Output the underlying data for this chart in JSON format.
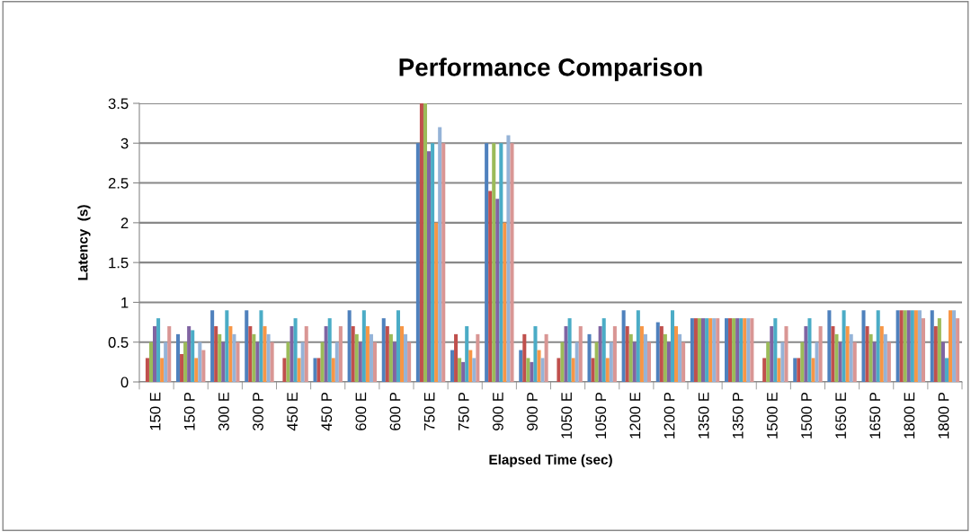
{
  "chart_data": {
    "type": "bar",
    "title": "Performance Comparison",
    "xlabel": "Elapsed Time (sec)",
    "ylabel": "Latency  (s)",
    "categories": [
      "150 E",
      "150 P",
      "300 E",
      "300 P",
      "450 E",
      "450 P",
      "600 E",
      "600 P",
      "750 E",
      "750 P",
      "900 E",
      "900 P",
      "1050 E",
      "1050 P",
      "1200 E",
      "1200 P",
      "1350 E",
      "1350 P",
      "1500 E",
      "1500 P",
      "1650 E",
      "1650 P",
      "1800 E",
      "1800 P"
    ],
    "series": [
      {
        "color": "#4f81bd",
        "values": [
          0,
          0.6,
          0.9,
          0.9,
          0,
          0.3,
          0.9,
          0.8,
          3,
          0.4,
          3,
          0.4,
          0,
          0.6,
          0.9,
          0.75,
          0.8,
          0.8,
          0,
          0.3,
          0.9,
          0.9,
          0.9,
          0.9
        ]
      },
      {
        "color": "#c0504d",
        "values": [
          0.3,
          0.35,
          0.7,
          0.7,
          0.3,
          0.3,
          0.7,
          0.7,
          3.5,
          0.6,
          2.4,
          0.6,
          0.3,
          0.3,
          0.7,
          0.7,
          0.8,
          0.8,
          0.3,
          0.3,
          0.7,
          0.7,
          0.9,
          0.7
        ]
      },
      {
        "color": "#9bbb59",
        "values": [
          0.5,
          0.5,
          0.6,
          0.6,
          0.5,
          0.5,
          0.6,
          0.6,
          3.5,
          0.3,
          3,
          0.3,
          0.5,
          0.5,
          0.6,
          0.6,
          0.8,
          0.8,
          0.5,
          0.5,
          0.6,
          0.6,
          0.9,
          0.8
        ]
      },
      {
        "color": "#8064a2",
        "values": [
          0.7,
          0.7,
          0.5,
          0.5,
          0.7,
          0.7,
          0.5,
          0.5,
          2.9,
          0.25,
          2.3,
          0.25,
          0.7,
          0.7,
          0.5,
          0.5,
          0.8,
          0.8,
          0.7,
          0.7,
          0.5,
          0.5,
          0.9,
          0.5
        ]
      },
      {
        "color": "#4bacc6",
        "values": [
          0.8,
          0.65,
          0.9,
          0.9,
          0.8,
          0.8,
          0.9,
          0.9,
          3,
          0.7,
          3,
          0.7,
          0.8,
          0.8,
          0.9,
          0.9,
          0.8,
          0.8,
          0.8,
          0.8,
          0.9,
          0.9,
          0.9,
          0.3
        ]
      },
      {
        "color": "#f79646",
        "values": [
          0.3,
          0.3,
          0.7,
          0.7,
          0.3,
          0.3,
          0.7,
          0.7,
          2,
          0.4,
          2,
          0.4,
          0.3,
          0.3,
          0.7,
          0.7,
          0.8,
          0.8,
          0.3,
          0.3,
          0.7,
          0.7,
          0.9,
          0.9
        ]
      },
      {
        "color": "#95b3d7",
        "values": [
          0.5,
          0.5,
          0.6,
          0.6,
          0.5,
          0.5,
          0.6,
          0.6,
          3.2,
          0.3,
          3.1,
          0.3,
          0.5,
          0.5,
          0.6,
          0.6,
          0.8,
          0.8,
          0.5,
          0.5,
          0.6,
          0.6,
          0.9,
          0.9
        ]
      },
      {
        "color": "#d99694",
        "values": [
          0.7,
          0.4,
          0.5,
          0.5,
          0.7,
          0.7,
          0.5,
          0.5,
          3,
          0.6,
          3,
          0.6,
          0.7,
          0.7,
          0.5,
          0.5,
          0.8,
          0.8,
          0.7,
          0.7,
          0.5,
          0.5,
          0.8,
          0.8
        ]
      }
    ],
    "ylim": [
      0,
      3.5
    ],
    "yticks": [
      0,
      0.5,
      1,
      1.5,
      2,
      2.5,
      3,
      3.5
    ],
    "grid": "y",
    "legend": false
  }
}
